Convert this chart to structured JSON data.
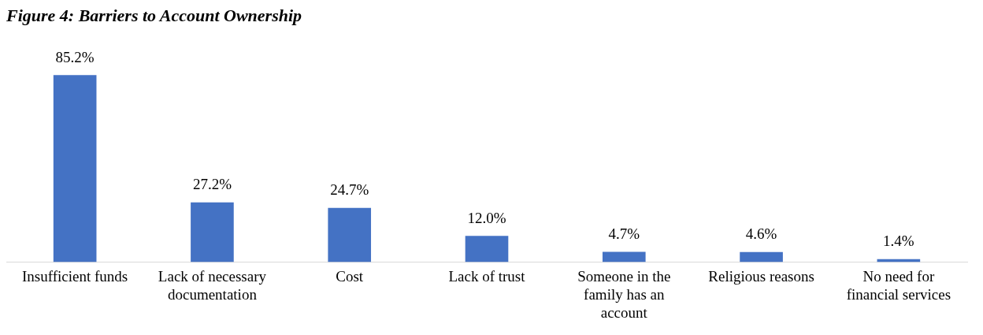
{
  "chart_data": {
    "type": "bar",
    "title": "Figure 4: Barriers to Account Ownership",
    "categories": [
      "Insufficient funds",
      "Lack of necessary documentation",
      "Cost",
      "Lack of trust",
      "Someone in the family has an account",
      "Religious reasons",
      "No need for financial services"
    ],
    "values": [
      85.2,
      27.2,
      24.7,
      12.0,
      4.7,
      4.6,
      1.4
    ],
    "value_labels": [
      "85.2%",
      "27.2%",
      "24.7%",
      "12.0%",
      "4.7%",
      "4.6%",
      "1.4%"
    ],
    "color": "#4472c4",
    "grid": false,
    "legend": false
  }
}
